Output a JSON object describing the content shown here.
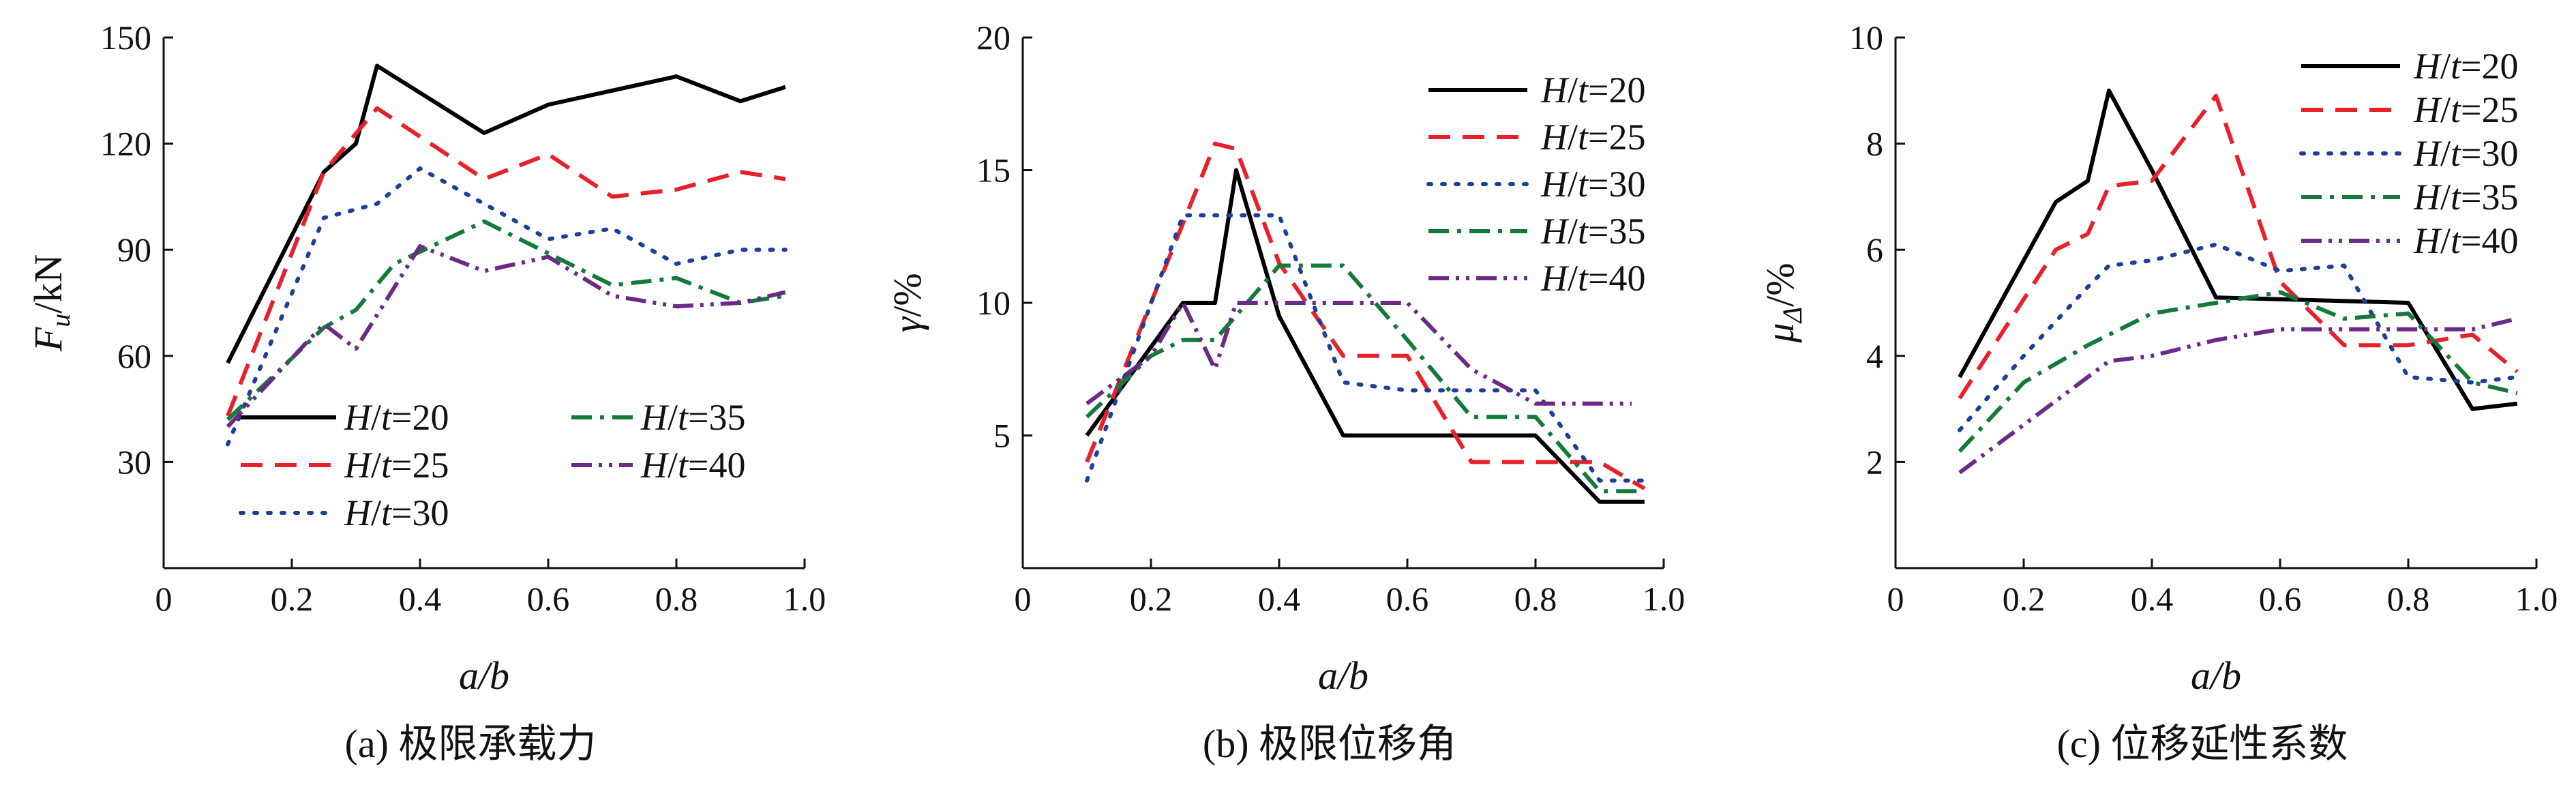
{
  "colors": {
    "H/t=20": "#000000",
    "H/t=25": "#e8202a",
    "H/t=30": "#1b3f9a",
    "H/t=35": "#137a3a",
    "H/t=40": "#6b2a86"
  },
  "chart_data": [
    {
      "type": "line",
      "caption": "(a) 极限承载力",
      "xlabel": "a/b",
      "ylabel": "Fu/kN",
      "ylabel_main": "F",
      "ylabel_sub": "u",
      "ylabel_tail": "/kN",
      "xlim": [
        0,
        1.0
      ],
      "ylim": [
        0,
        150
      ],
      "xticks": [
        0,
        0.2,
        0.4,
        0.6,
        0.8,
        1.0
      ],
      "xtick_labels": [
        "0",
        "0.2",
        "0.4",
        "0.6",
        "0.8",
        "1.0"
      ],
      "yticks": [
        30,
        60,
        90,
        120,
        150
      ],
      "ytick_labels": [
        "30",
        "60",
        "90",
        "120",
        "150"
      ],
      "legend": "bottom-right, two columns",
      "series": [
        {
          "name": "H/t=20",
          "x": [
            0.1,
            0.25,
            0.3,
            0.333,
            0.5,
            0.6,
            0.7,
            0.8,
            0.9,
            0.97
          ],
          "y": [
            58,
            112,
            120,
            142,
            123,
            131,
            135,
            139,
            132,
            136
          ]
        },
        {
          "name": "H/t=25",
          "x": [
            0.1,
            0.25,
            0.333,
            0.5,
            0.6,
            0.7,
            0.8,
            0.9,
            0.97
          ],
          "y": [
            43,
            112,
            130,
            110,
            117,
            105,
            107,
            112,
            110
          ]
        },
        {
          "name": "H/t=30",
          "x": [
            0.1,
            0.25,
            0.333,
            0.4,
            0.5,
            0.6,
            0.7,
            0.8,
            0.9,
            0.97
          ],
          "y": [
            35,
            99,
            103,
            113,
            103,
            93,
            96,
            86,
            90,
            90
          ]
        },
        {
          "name": "H/t=35",
          "x": [
            0.1,
            0.25,
            0.3,
            0.36,
            0.5,
            0.6,
            0.7,
            0.8,
            0.9,
            0.97
          ],
          "y": [
            42,
            68,
            73,
            86,
            98,
            89,
            80,
            82,
            75,
            77
          ]
        },
        {
          "name": "H/t=40",
          "x": [
            0.1,
            0.25,
            0.3,
            0.4,
            0.5,
            0.6,
            0.7,
            0.8,
            0.9,
            0.97
          ],
          "y": [
            40,
            69,
            62,
            91,
            84,
            88,
            77,
            74,
            75,
            78
          ]
        }
      ]
    },
    {
      "type": "line",
      "caption": "(b) 极限位移角",
      "xlabel": "a/b",
      "ylabel": "γ/%",
      "xlim": [
        0,
        1.0
      ],
      "ylim": [
        0,
        20
      ],
      "xticks": [
        0,
        0.2,
        0.4,
        0.6,
        0.8,
        1.0
      ],
      "xtick_labels": [
        "0",
        "0.2",
        "0.4",
        "0.6",
        "0.8",
        "1.0"
      ],
      "yticks": [
        5,
        10,
        15,
        20
      ],
      "ytick_labels": [
        "5",
        "10",
        "15",
        "20"
      ],
      "legend": "top-right, one column",
      "series": [
        {
          "name": "H/t=20",
          "x": [
            0.1,
            0.25,
            0.3,
            0.333,
            0.4,
            0.5,
            0.8,
            0.9,
            0.97
          ],
          "y": [
            5,
            10,
            10,
            15,
            9.5,
            5,
            5,
            2.5,
            2.5
          ]
        },
        {
          "name": "H/t=25",
          "x": [
            0.1,
            0.2,
            0.3,
            0.333,
            0.4,
            0.5,
            0.6,
            0.7,
            0.8,
            0.9,
            0.97
          ],
          "y": [
            4,
            10,
            16,
            15.8,
            11.5,
            8,
            8,
            4,
            4,
            4,
            3
          ]
        },
        {
          "name": "H/t=30",
          "x": [
            0.1,
            0.25,
            0.333,
            0.4,
            0.5,
            0.6,
            0.7,
            0.8,
            0.9,
            0.97
          ],
          "y": [
            3.3,
            13.3,
            13.3,
            13.3,
            7,
            6.7,
            6.7,
            6.7,
            3.3,
            3.3
          ]
        },
        {
          "name": "H/t=35",
          "x": [
            0.1,
            0.2,
            0.25,
            0.3,
            0.4,
            0.5,
            0.6,
            0.7,
            0.8,
            0.9,
            0.97
          ],
          "y": [
            5.7,
            8,
            8.6,
            8.6,
            11.4,
            11.4,
            8.6,
            5.7,
            5.7,
            2.9,
            2.9
          ]
        },
        {
          "name": "H/t=40",
          "x": [
            0.1,
            0.2,
            0.25,
            0.3,
            0.333,
            0.4,
            0.5,
            0.6,
            0.7,
            0.8,
            0.9,
            0.95
          ],
          "y": [
            6.2,
            8,
            10,
            7.5,
            10,
            10,
            10,
            10,
            7.5,
            6.2,
            6.2,
            6.2
          ]
        }
      ]
    },
    {
      "type": "line",
      "caption": "(c) 位移延性系数",
      "xlabel": "a/b",
      "ylabel": "μΔ/%",
      "ylabel_main": "μ",
      "ylabel_sub": "Δ",
      "ylabel_tail": "/%",
      "xlim": [
        0,
        1.0
      ],
      "ylim": [
        0,
        10
      ],
      "xticks": [
        0,
        0.2,
        0.4,
        0.6,
        0.8,
        1.0
      ],
      "xtick_labels": [
        "0",
        "0.2",
        "0.4",
        "0.6",
        "0.8",
        "1.0"
      ],
      "yticks": [
        2,
        4,
        6,
        8,
        10
      ],
      "ytick_labels": [
        "2",
        "4",
        "6",
        "8",
        "10"
      ],
      "legend": "top-right, one column",
      "series": [
        {
          "name": "H/t=20",
          "x": [
            0.1,
            0.25,
            0.3,
            0.333,
            0.4,
            0.5,
            0.8,
            0.9,
            0.97
          ],
          "y": [
            3.6,
            6.9,
            7.3,
            9.0,
            7.5,
            5.1,
            5.0,
            3.0,
            3.1
          ]
        },
        {
          "name": "H/t=25",
          "x": [
            0.1,
            0.25,
            0.3,
            0.333,
            0.4,
            0.5,
            0.6,
            0.7,
            0.8,
            0.9,
            0.97
          ],
          "y": [
            3.2,
            6.0,
            6.3,
            7.2,
            7.3,
            8.9,
            5.4,
            4.2,
            4.2,
            4.4,
            3.7
          ]
        },
        {
          "name": "H/t=30",
          "x": [
            0.1,
            0.2,
            0.3,
            0.333,
            0.4,
            0.5,
            0.6,
            0.7,
            0.8,
            0.9,
            0.97
          ],
          "y": [
            2.6,
            4.0,
            5.3,
            5.7,
            5.8,
            6.1,
            5.6,
            5.7,
            3.6,
            3.5,
            3.6
          ]
        },
        {
          "name": "H/t=35",
          "x": [
            0.1,
            0.2,
            0.3,
            0.4,
            0.5,
            0.6,
            0.7,
            0.8,
            0.9,
            0.97
          ],
          "y": [
            2.2,
            3.5,
            4.2,
            4.8,
            5.0,
            5.2,
            4.7,
            4.8,
            3.5,
            3.3
          ]
        },
        {
          "name": "H/t=40",
          "x": [
            0.1,
            0.2,
            0.3,
            0.333,
            0.4,
            0.5,
            0.6,
            0.7,
            0.8,
            0.9,
            0.97
          ],
          "y": [
            1.8,
            2.7,
            3.6,
            3.9,
            4.0,
            4.3,
            4.5,
            4.5,
            4.5,
            4.5,
            4.7
          ]
        }
      ]
    }
  ]
}
